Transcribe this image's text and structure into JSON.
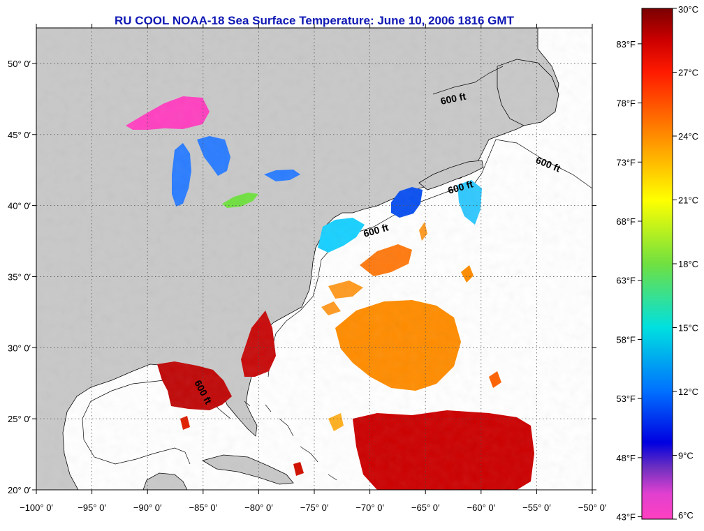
{
  "title": "RU COOL  NOAA-18  Sea Surface Temperature:  June 10, 2006 1816 GMT",
  "map": {
    "lon_range": [
      -100,
      -50
    ],
    "lat_range": [
      20,
      52.5
    ],
    "lon_ticks": [
      {
        "value": -100,
        "label": "−100° 0′"
      },
      {
        "value": -95,
        "label": "−95° 0′"
      },
      {
        "value": -90,
        "label": "−90° 0′"
      },
      {
        "value": -85,
        "label": "−85° 0′"
      },
      {
        "value": -80,
        "label": "−80° 0′"
      },
      {
        "value": -75,
        "label": "−75° 0′"
      },
      {
        "value": -70,
        "label": "−70° 0′"
      },
      {
        "value": -65,
        "label": "−65° 0′"
      },
      {
        "value": -60,
        "label": "−60° 0′"
      },
      {
        "value": -55,
        "label": "−55° 0′"
      },
      {
        "value": -50,
        "label": "−50° 0′"
      }
    ],
    "lat_ticks": [
      {
        "value": 20,
        "label": "20° 0′"
      },
      {
        "value": 25,
        "label": "25° 0′"
      },
      {
        "value": 30,
        "label": "30° 0′"
      },
      {
        "value": 35,
        "label": "35° 0′"
      },
      {
        "value": 40,
        "label": "40° 0′"
      },
      {
        "value": 45,
        "label": "45° 0′"
      },
      {
        "value": 50,
        "label": "50° 0′"
      }
    ],
    "depth_labels": [
      "600 ft",
      "600 ft",
      "600 ft",
      "600 ft",
      "600 ft"
    ],
    "land_color": "#c8c8c8",
    "ocean_color": "#ffffff"
  },
  "colorbar": {
    "min_c": 6,
    "max_c": 30,
    "celsius_labels": [
      {
        "value": 30,
        "label": "30°C"
      },
      {
        "value": 27,
        "label": "27°C"
      },
      {
        "value": 24,
        "label": "24°C"
      },
      {
        "value": 21,
        "label": "21°C"
      },
      {
        "value": 18,
        "label": "18°C"
      },
      {
        "value": 15,
        "label": "15°C"
      },
      {
        "value": 12,
        "label": "12°C"
      },
      {
        "value": 9,
        "label": "9°C"
      },
      {
        "value": 6,
        "label": "6°C"
      }
    ],
    "fahrenheit_labels": [
      {
        "value": 83,
        "label": "83°F"
      },
      {
        "value": 78,
        "label": "78°F"
      },
      {
        "value": 73,
        "label": "73°F"
      },
      {
        "value": 68,
        "label": "68°F"
      },
      {
        "value": 63,
        "label": "63°F"
      },
      {
        "value": 58,
        "label": "58°F"
      },
      {
        "value": 53,
        "label": "53°F"
      },
      {
        "value": 48,
        "label": "48°F"
      },
      {
        "value": 43,
        "label": "43°F"
      }
    ],
    "stops": [
      {
        "c": 30,
        "color": "#7a0000"
      },
      {
        "c": 28.5,
        "color": "#cc0000"
      },
      {
        "c": 27,
        "color": "#ff1a00"
      },
      {
        "c": 24,
        "color": "#ff8c00"
      },
      {
        "c": 21,
        "color": "#ffff00"
      },
      {
        "c": 18,
        "color": "#70e040"
      },
      {
        "c": 15,
        "color": "#00e0e0"
      },
      {
        "c": 12,
        "color": "#0070ff"
      },
      {
        "c": 9.6,
        "color": "#0000e0"
      },
      {
        "c": 8.4,
        "color": "#7030c0"
      },
      {
        "c": 7.2,
        "color": "#e040d0"
      },
      {
        "c": 6,
        "color": "#ff40c0"
      }
    ]
  },
  "sst_regions": [
    {
      "name": "lake-superior",
      "temp_c": 6.5
    },
    {
      "name": "lake-michigan",
      "temp_c": 10.5
    },
    {
      "name": "lake-huron",
      "temp_c": 11
    },
    {
      "name": "lake-erie",
      "temp_c": 16.5
    },
    {
      "name": "lake-ontario",
      "temp_c": 11
    },
    {
      "name": "gulf-of-maine",
      "temp_c": 10
    },
    {
      "name": "georges-bank-east",
      "temp_c": 14
    },
    {
      "name": "mid-atlantic-bight",
      "temp_c": 14.5
    },
    {
      "name": "gulf-stream-north",
      "temp_c": 25
    },
    {
      "name": "sargasso-central",
      "temp_c": 24.5
    },
    {
      "name": "southern-atlantic",
      "temp_c": 28
    },
    {
      "name": "florida-atlantic",
      "temp_c": 28.5
    },
    {
      "name": "gulf-of-mexico-ne",
      "temp_c": 28.3
    }
  ]
}
